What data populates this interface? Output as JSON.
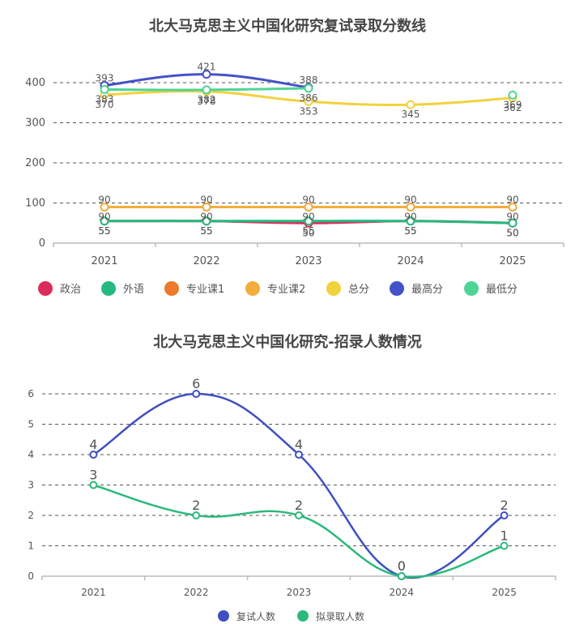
{
  "chart_data": [
    {
      "type": "line",
      "title": "北大马克思主义中国化研究复试录取分数线",
      "xlabel": "",
      "ylabel": "",
      "categories": [
        "2021",
        "2022",
        "2023",
        "2024",
        "2025"
      ],
      "ylim": [
        0,
        400
      ],
      "yticks": [
        0,
        100,
        200,
        300,
        400
      ],
      "grid": true,
      "legend_position": "bottom",
      "series": [
        {
          "name": "政治",
          "color": "#dc2c5c",
          "values": [
            55,
            55,
            50,
            55,
            50
          ]
        },
        {
          "name": "外语",
          "color": "#25b97f",
          "values": [
            55,
            55,
            55,
            55,
            50
          ]
        },
        {
          "name": "专业课1",
          "color": "#ec7a28",
          "values": [
            90,
            90,
            90,
            90,
            90
          ]
        },
        {
          "name": "专业课2",
          "color": "#f2ad3c",
          "values": [
            90,
            90,
            90,
            90,
            90
          ]
        },
        {
          "name": "总分",
          "color": "#f2d23c",
          "values": [
            370,
            378,
            353,
            345,
            362
          ]
        },
        {
          "name": "最高分",
          "color": "#4452c8",
          "values": [
            393,
            421,
            388,
            null,
            null
          ]
        },
        {
          "name": "最低分",
          "color": "#4fd495",
          "values": [
            383,
            382,
            386,
            null,
            369
          ]
        }
      ]
    },
    {
      "type": "line",
      "title": "北大马克思主义中国化研究-招录人数情况",
      "xlabel": "",
      "ylabel": "",
      "categories": [
        "2021",
        "2022",
        "2023",
        "2024",
        "2025"
      ],
      "ylim": [
        0,
        6
      ],
      "yticks": [
        0,
        1,
        2,
        3,
        4,
        5,
        6
      ],
      "grid": true,
      "legend_position": "bottom",
      "series": [
        {
          "name": "复试人数",
          "color": "#3f4fc0",
          "values": [
            4,
            6,
            4,
            0,
            2
          ]
        },
        {
          "name": "拟录取人数",
          "color": "#2bb97c",
          "values": [
            3,
            2,
            2,
            0,
            1
          ]
        }
      ]
    }
  ]
}
